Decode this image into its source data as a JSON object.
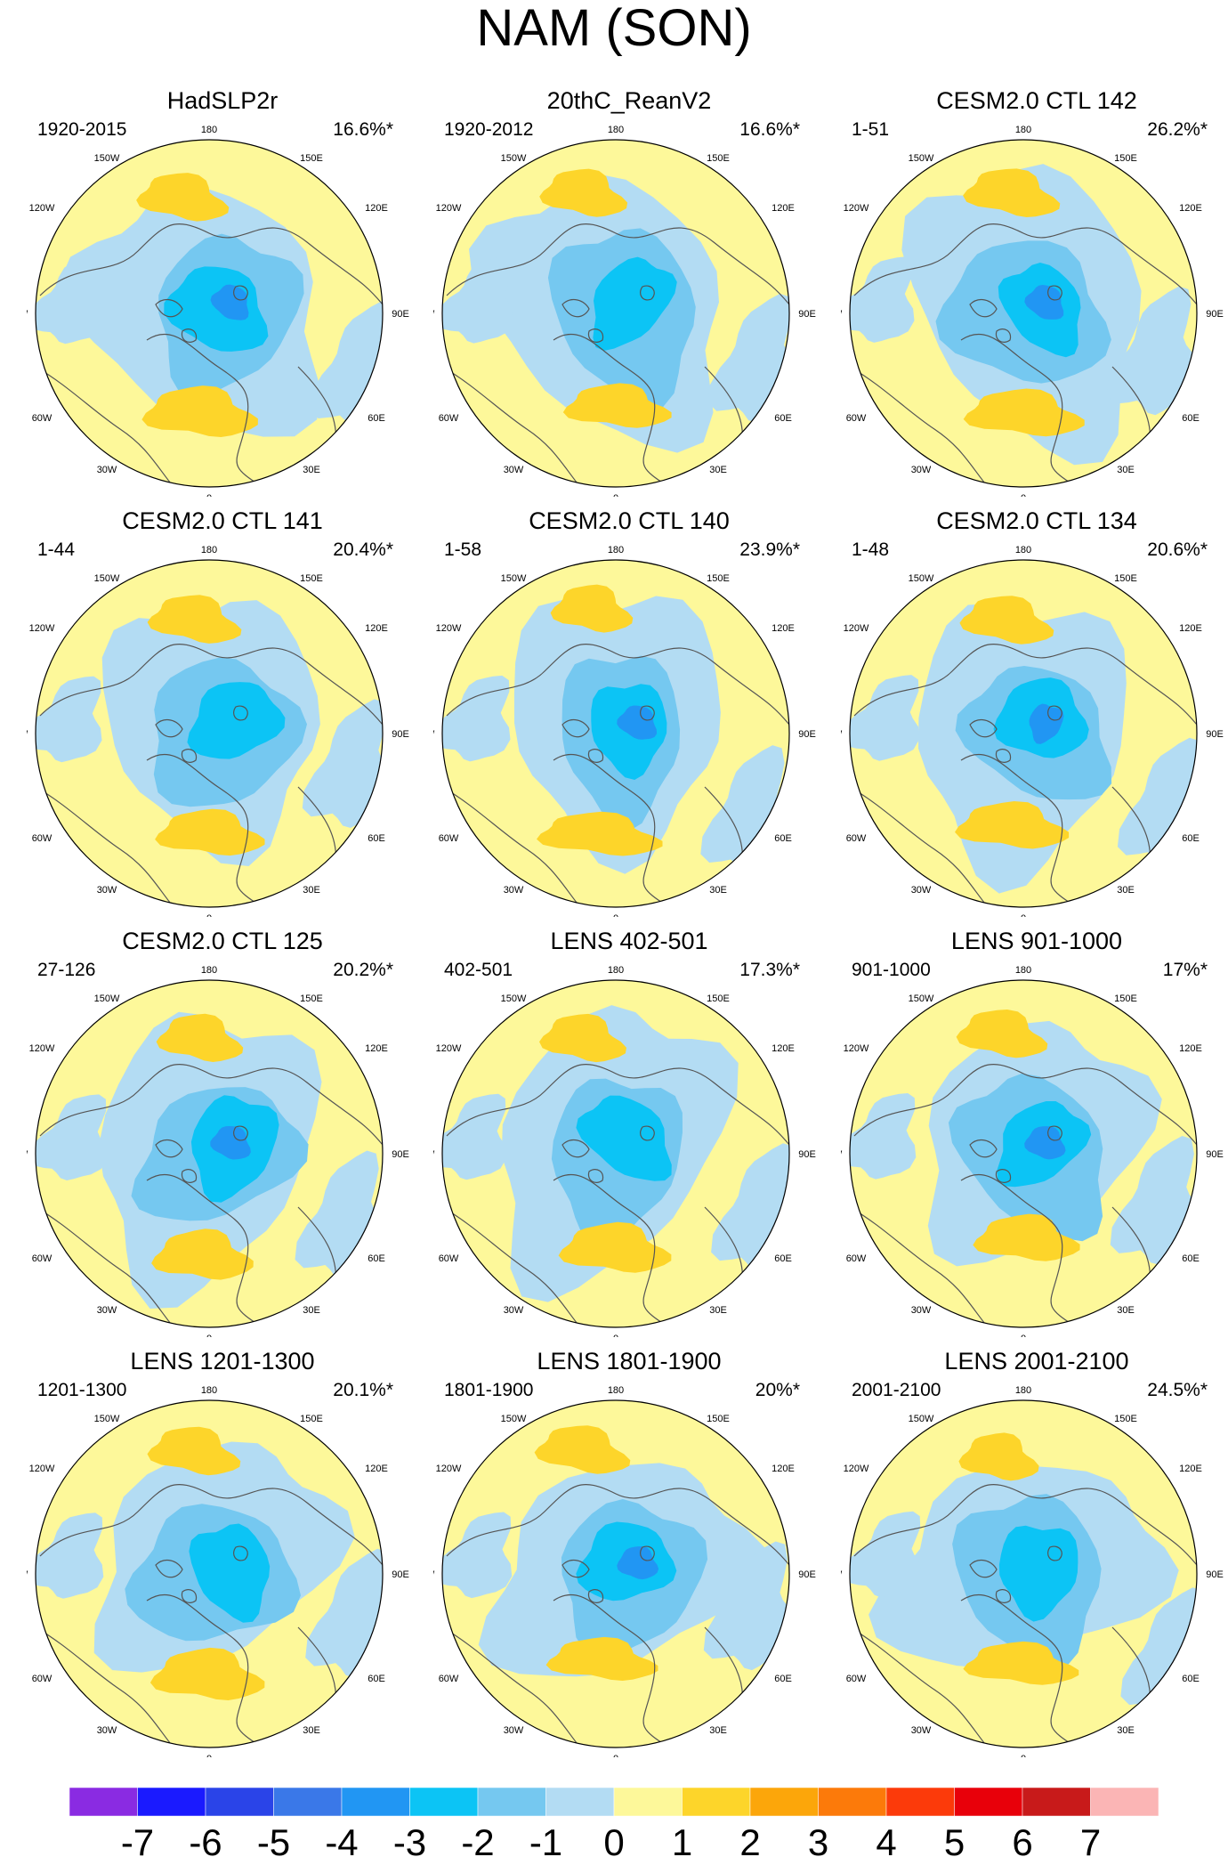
{
  "title": "NAM (SON)",
  "panels": [
    {
      "title": "HadSLP2r",
      "period": "1920-2015",
      "pct": "16.6%*"
    },
    {
      "title": "20thC_ReanV2",
      "period": "1920-2012",
      "pct": "16.6%*"
    },
    {
      "title": "CESM2.0 CTL 142",
      "period": "1-51",
      "pct": "26.2%*"
    },
    {
      "title": "CESM2.0 CTL 141",
      "period": "1-44",
      "pct": "20.4%*"
    },
    {
      "title": "CESM2.0 CTL 140",
      "period": "1-58",
      "pct": "23.9%*"
    },
    {
      "title": "CESM2.0 CTL 134",
      "period": "1-48",
      "pct": "20.6%*"
    },
    {
      "title": "CESM2.0 CTL 125",
      "period": "27-126",
      "pct": "20.2%*"
    },
    {
      "title": "LENS 402-501",
      "period": "402-501",
      "pct": "17.3%*"
    },
    {
      "title": "LENS 901-1000",
      "period": "901-1000",
      "pct": "17%*"
    },
    {
      "title": "LENS 1201-1300",
      "period": "1201-1300",
      "pct": "20.1%*"
    },
    {
      "title": "LENS 1801-1900",
      "period": "1801-1900",
      "pct": "20%*"
    },
    {
      "title": "LENS 2001-2100",
      "period": "2001-2100",
      "pct": "24.5%*"
    }
  ],
  "lon_labels": [
    "180",
    "150E",
    "120E",
    "90E",
    "60E",
    "30E",
    "0",
    "30W",
    "60W",
    "90W",
    "120W",
    "150W"
  ],
  "colorbar": {
    "labels": [
      "-7",
      "-6",
      "-5",
      "-4",
      "-3",
      "-2",
      "-1",
      "0",
      "1",
      "2",
      "3",
      "4",
      "5",
      "6",
      "7"
    ],
    "colors": [
      "#8a2be2",
      "#1a1aff",
      "#2a44e8",
      "#3a78e8",
      "#2196f3",
      "#0cc4f5",
      "#75c8f0",
      "#b3dcf3",
      "#fdf89a",
      "#fdd52a",
      "#fca60a",
      "#fc7a0a",
      "#fc3a0a",
      "#e8000a",
      "#c81a1a",
      "#fbb5b5"
    ]
  }
}
